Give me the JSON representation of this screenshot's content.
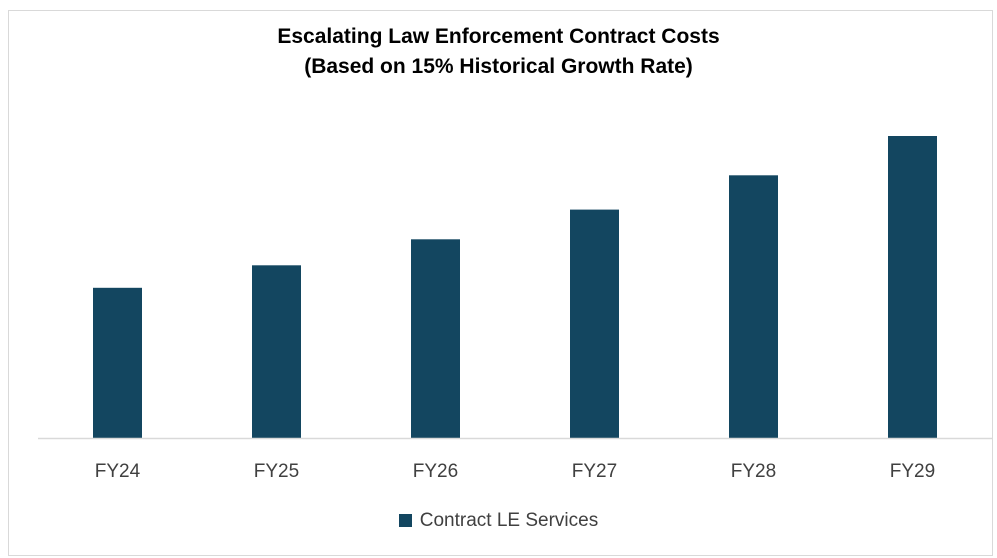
{
  "chart_data": {
    "type": "bar",
    "title_lines": [
      "Escalating Law Enforcement Contract Costs",
      "(Based on 15% Historical Growth Rate)"
    ],
    "xlabel": "",
    "ylabel": "",
    "categories": [
      "FY24",
      "FY25",
      "FY26",
      "FY27",
      "FY28",
      "FY29"
    ],
    "series": [
      {
        "name": "Contract LE Services",
        "values": [
          100,
          115,
          132.3,
          152.1,
          174.9,
          201.1
        ]
      }
    ],
    "ylim": [
      0,
      201.1
    ],
    "y_axis_visible": false,
    "grid": false,
    "legend": "bottom",
    "colors": {
      "bar": "#134660",
      "axis": "#d9d9d9",
      "text": "#404040",
      "title": "#000000"
    }
  }
}
